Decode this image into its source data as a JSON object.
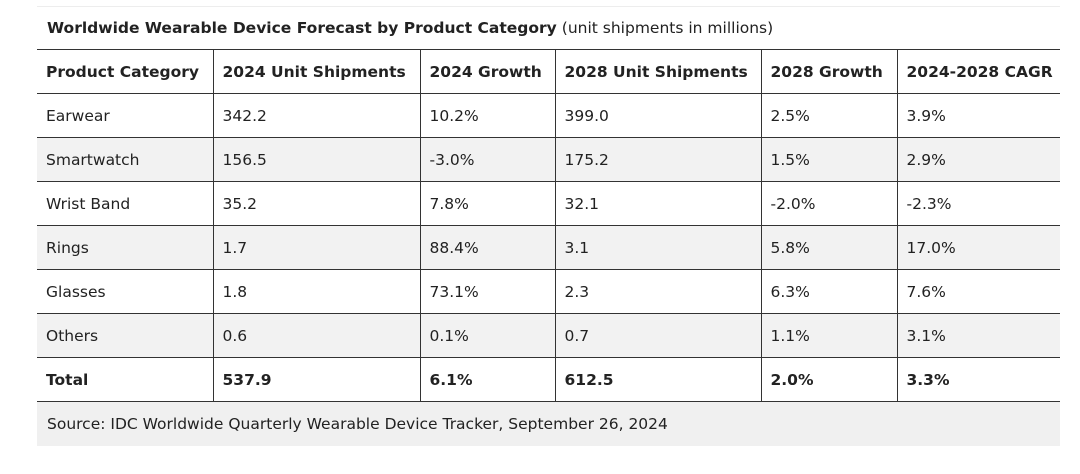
{
  "caption": {
    "title": "Worldwide Wearable Device Forecast by Product Category",
    "subtitle": "(unit shipments in millions)"
  },
  "table": {
    "headers": [
      "Product Category",
      "2024 Unit Shipments",
      "2024 Growth",
      "2028 Unit Shipments",
      "2028 Growth",
      "2024-2028 CAGR"
    ],
    "rows": [
      [
        "Earwear",
        "342.2",
        "10.2%",
        "399.0",
        "2.5%",
        "3.9%"
      ],
      [
        "Smartwatch",
        "156.5",
        "-3.0%",
        "175.2",
        "1.5%",
        "2.9%"
      ],
      [
        "Wrist Band",
        "35.2",
        "7.8%",
        "32.1",
        "-2.0%",
        "-2.3%"
      ],
      [
        "Rings",
        "1.7",
        "88.4%",
        "3.1",
        "5.8%",
        "17.0%"
      ],
      [
        "Glasses",
        "1.8",
        "73.1%",
        "2.3",
        "6.3%",
        "7.6%"
      ],
      [
        "Others",
        "0.6",
        "0.1%",
        "0.7",
        "1.1%",
        "3.1%"
      ]
    ],
    "total": [
      "Total",
      "537.9",
      "6.1%",
      "612.5",
      "2.0%",
      "3.3%"
    ]
  },
  "source": "Source: IDC Worldwide Quarterly Wearable Device Tracker, September 26, 2024"
}
